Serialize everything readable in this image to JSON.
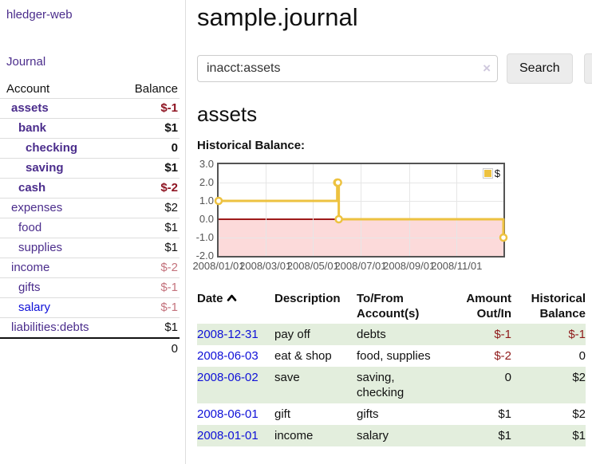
{
  "app": {
    "brand": "hledger-web",
    "nav_journal": "Journal"
  },
  "sidebar": {
    "accounts_header": {
      "account": "Account",
      "balance": "Balance"
    },
    "accounts": [
      {
        "name": "assets",
        "level": 1,
        "balance": "$-1",
        "bold": true,
        "neg": "strong"
      },
      {
        "name": "bank",
        "level": 2,
        "balance": "$1",
        "bold": true
      },
      {
        "name": "checking",
        "level": 3,
        "balance": "0",
        "bold": true
      },
      {
        "name": "saving",
        "level": 3,
        "balance": "$1",
        "bold": true
      },
      {
        "name": "cash",
        "level": 2,
        "balance": "$-2",
        "bold": true,
        "neg": "strong"
      },
      {
        "name": "expenses",
        "level": 1,
        "balance": "$2"
      },
      {
        "name": "food",
        "level": 2,
        "balance": "$1"
      },
      {
        "name": "supplies",
        "level": 2,
        "balance": "$1"
      },
      {
        "name": "income",
        "level": 1,
        "balance": "$-2",
        "neg": "soft"
      },
      {
        "name": "gifts",
        "level": 2,
        "balance": "$-1",
        "neg": "soft"
      },
      {
        "name": "salary",
        "level": 2,
        "balance": "$-1",
        "neg": "soft",
        "link": "unvisited"
      },
      {
        "name": "liabilities:debts",
        "level": 1,
        "balance": "$1"
      }
    ],
    "total": "0"
  },
  "header": {
    "title": "sample.journal"
  },
  "search": {
    "value": "inacct:assets",
    "clear_icon": "×",
    "button": "Search",
    "help_button": "?"
  },
  "main": {
    "account_title": "assets",
    "chart_label": "Historical Balance:"
  },
  "chart_data": {
    "type": "line",
    "step": true,
    "title": "Historical Balance",
    "series": [
      {
        "name": "$",
        "color": "#edc240",
        "points": [
          [
            "2008-01-01",
            1
          ],
          [
            "2008-06-01",
            2
          ],
          [
            "2008-06-02",
            2
          ],
          [
            "2008-06-03",
            0
          ],
          [
            "2008-12-31",
            -1
          ]
        ]
      }
    ],
    "x_range": [
      "2008-01-01",
      "2008-12-31"
    ],
    "x_ticks": [
      "2008/01/01",
      "2008/03/01",
      "2008/05/01",
      "2008/07/01",
      "2008/09/01",
      "2008/11/01"
    ],
    "y_ticks": [
      "3.0",
      "2.0",
      "1.0",
      "0.0",
      "-1.0",
      "-2.0"
    ],
    "ylim": [
      -2,
      3
    ],
    "grid": true,
    "legend_position": "top-right",
    "negative_region_color": "#fcdada",
    "zero_line_color": "#9e1a1a"
  },
  "register": {
    "columns": [
      {
        "label": "Date",
        "sorted": "asc",
        "align": "left"
      },
      {
        "label": "Description",
        "align": "left"
      },
      {
        "label": "To/From Account(s)",
        "align": "left"
      },
      {
        "label": "Amount Out/In",
        "align": "right"
      },
      {
        "label": "Historical Balance",
        "align": "right"
      }
    ],
    "rows": [
      {
        "date": "2008-12-31",
        "description": "pay off",
        "accounts": "debts",
        "amount": "$-1",
        "balance": "$-1",
        "amount_neg": true,
        "balance_neg": true,
        "shade": true
      },
      {
        "date": "2008-06-03",
        "description": "eat & shop",
        "accounts": "food, supplies",
        "amount": "$-2",
        "balance": "0",
        "amount_neg": true,
        "shade": false
      },
      {
        "date": "2008-06-02",
        "description": "save",
        "accounts": "saving, checking",
        "amount": "0",
        "balance": "$2",
        "shade": true
      },
      {
        "date": "2008-06-01",
        "description": "gift",
        "accounts": "gifts",
        "amount": "$1",
        "balance": "$2",
        "shade": false
      },
      {
        "date": "2008-01-01",
        "description": "income",
        "accounts": "salary",
        "amount": "$1",
        "balance": "$1",
        "shade": true
      }
    ]
  }
}
